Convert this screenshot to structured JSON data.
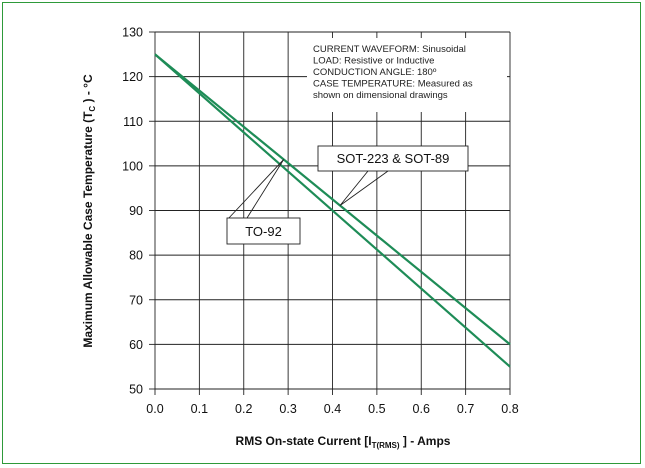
{
  "chart_data": {
    "type": "line",
    "xlabel_main": "RMS On-state Current [I",
    "xlabel_sub": "T(RMS)",
    "xlabel_tail": " ] - Amps",
    "ylabel_main": "Maximum Allowable Case Temperature (T",
    "ylabel_sub": "C",
    "ylabel_tail": " ) - °C",
    "xlim": [
      0.0,
      0.8
    ],
    "ylim": [
      50,
      130
    ],
    "x_ticks": [
      "0.0",
      "0.1",
      "0.2",
      "0.3",
      "0.4",
      "0.5",
      "0.6",
      "0.7",
      "0.8"
    ],
    "y_ticks": [
      "130",
      "120",
      "110",
      "100",
      "90",
      "80",
      "70",
      "60",
      "50"
    ],
    "grid": true,
    "line_color": "#1e8c57",
    "series": [
      {
        "name": "SOT-223 & SOT-89",
        "x": [
          0.0,
          0.8
        ],
        "y": [
          125,
          60
        ]
      },
      {
        "name": "TO-92",
        "x": [
          0.0,
          0.8
        ],
        "y": [
          125,
          55
        ]
      }
    ],
    "annotations": [
      "CURRENT WAVEFORM: Sinusoidal",
      "LOAD: Resistive or Inductive",
      "CONDUCTION ANGLE: 180º",
      "CASE TEMPERATURE: Measured as",
      "shown on dimensional drawings"
    ]
  }
}
